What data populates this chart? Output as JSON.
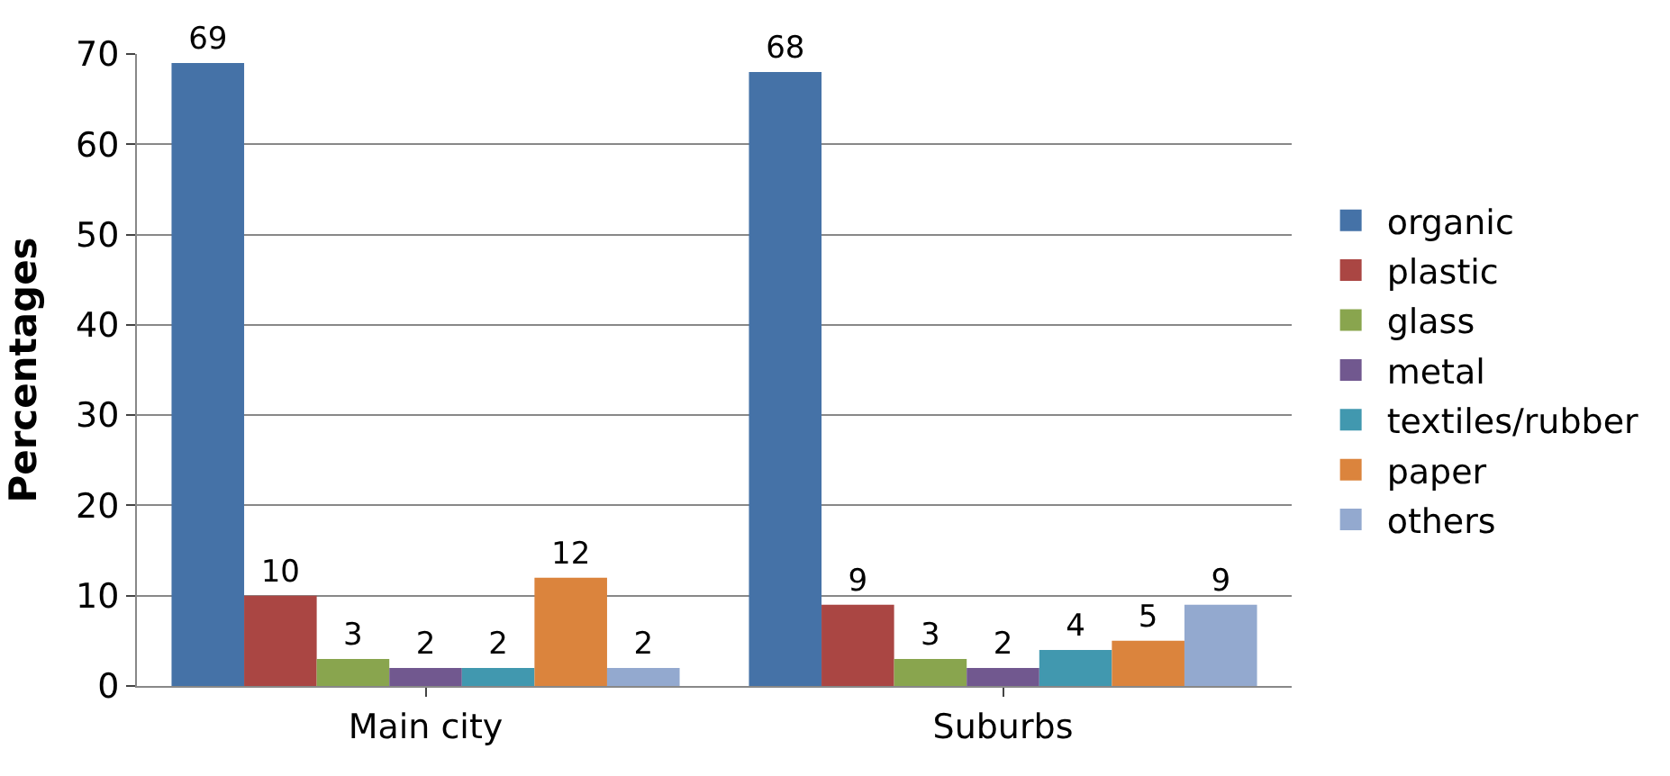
{
  "chart_data": {
    "type": "bar",
    "ylabel": "Percentages",
    "categories": [
      "Main city",
      "Suburbs"
    ],
    "series": [
      {
        "name": "organic",
        "color": "#4572a7",
        "values": [
          69,
          68
        ]
      },
      {
        "name": "plastic",
        "color": "#aa4643",
        "values": [
          10,
          9
        ]
      },
      {
        "name": "glass",
        "color": "#89a54e",
        "values": [
          3,
          3
        ]
      },
      {
        "name": "metal",
        "color": "#71588f",
        "values": [
          2,
          2
        ]
      },
      {
        "name": "textiles/rubber",
        "color": "#4198af",
        "values": [
          2,
          4
        ]
      },
      {
        "name": "paper",
        "color": "#db843d",
        "values": [
          12,
          5
        ]
      },
      {
        "name": "others",
        "color": "#93a9cf",
        "values": [
          2,
          9
        ]
      }
    ],
    "ylim": [
      0,
      70
    ],
    "yticks": [
      0,
      10,
      20,
      30,
      40,
      50,
      60,
      70
    ],
    "grid": "y",
    "legend": "right",
    "data_labels": true
  }
}
